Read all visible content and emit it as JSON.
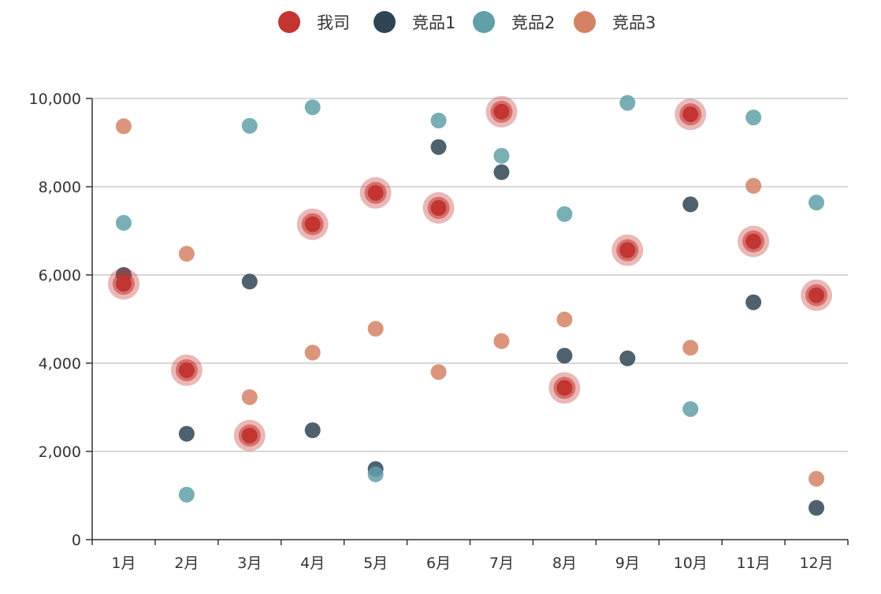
{
  "chart_data": {
    "type": "scatter",
    "categories": [
      "1月",
      "2月",
      "3月",
      "4月",
      "5月",
      "6月",
      "7月",
      "8月",
      "9月",
      "10月",
      "11月",
      "12月"
    ],
    "ylim": [
      0,
      10000
    ],
    "y_ticks": [
      0,
      2000,
      4000,
      6000,
      8000,
      10000
    ],
    "y_tick_labels": [
      "0",
      "2,000",
      "4,000",
      "6,000",
      "8,000",
      "10,000"
    ],
    "grid": true,
    "legend_position": "top-center",
    "series": [
      {
        "name": "竞品1",
        "color": "#2f4554",
        "values": [
          6000,
          2400,
          5850,
          2480,
          1600,
          8900,
          8330,
          4170,
          4110,
          7600,
          5380,
          720
        ]
      },
      {
        "name": "竞品2",
        "color": "#61a0a8",
        "values": [
          7180,
          1020,
          9380,
          9800,
          1480,
          9500,
          8700,
          7380,
          9900,
          2960,
          9570,
          7640
        ]
      },
      {
        "name": "竞品3",
        "color": "#d48265",
        "values": [
          9370,
          6480,
          3230,
          4240,
          4780,
          3800,
          4500,
          4990,
          6570,
          4350,
          8020,
          1380
        ]
      },
      {
        "name": "我司",
        "color": "#c23531",
        "highlight": true,
        "values": [
          5800,
          3840,
          2360,
          7150,
          7860,
          7520,
          9700,
          3440,
          6560,
          9640,
          6760,
          5540
        ]
      }
    ],
    "legend": [
      {
        "name": "我司",
        "color": "#c23531"
      },
      {
        "name": "竞品1",
        "color": "#2f4554"
      },
      {
        "name": "竞品2",
        "color": "#61a0a8"
      },
      {
        "name": "竞品3",
        "color": "#d48265"
      }
    ]
  }
}
